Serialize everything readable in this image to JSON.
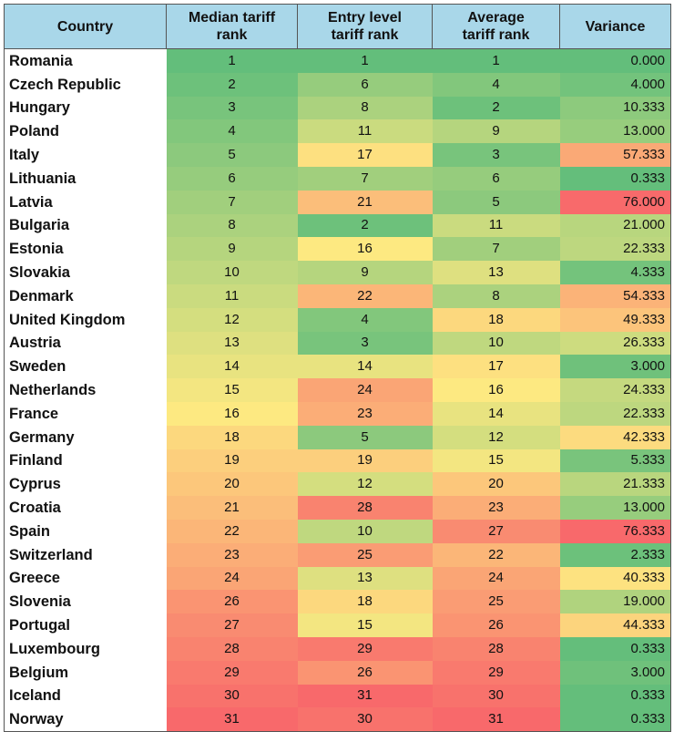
{
  "header_color": "#a9d7e9",
  "chart_data": {
    "type": "table",
    "columns": [
      "Country",
      "Median tariff rank",
      "Entry level tariff rank",
      "Average tariff rank",
      "Variance"
    ],
    "header_lines": [
      [
        "Country"
      ],
      [
        "Median tariff",
        "rank"
      ],
      [
        "Entry level",
        "tariff rank"
      ],
      [
        "Average",
        "tariff rank"
      ],
      [
        "Variance"
      ]
    ],
    "color_scale": {
      "low": "#63be7b",
      "mid": "#fde981",
      "high": "#f8696b"
    },
    "rows": [
      {
        "country": "Romania",
        "median": "1",
        "entry": "1",
        "average": "1",
        "variance": "0.000"
      },
      {
        "country": "Czech Republic",
        "median": "2",
        "entry": "6",
        "average": "4",
        "variance": "4.000"
      },
      {
        "country": "Hungary",
        "median": "3",
        "entry": "8",
        "average": "2",
        "variance": "10.333"
      },
      {
        "country": "Poland",
        "median": "4",
        "entry": "11",
        "average": "9",
        "variance": "13.000"
      },
      {
        "country": "Italy",
        "median": "5",
        "entry": "17",
        "average": "3",
        "variance": "57.333"
      },
      {
        "country": "Lithuania",
        "median": "6",
        "entry": "7",
        "average": "6",
        "variance": "0.333"
      },
      {
        "country": "Latvia",
        "median": "7",
        "entry": "21",
        "average": "5",
        "variance": "76.000"
      },
      {
        "country": "Bulgaria",
        "median": "8",
        "entry": "2",
        "average": "11",
        "variance": "21.000"
      },
      {
        "country": "Estonia",
        "median": "9",
        "entry": "16",
        "average": "7",
        "variance": "22.333"
      },
      {
        "country": "Slovakia",
        "median": "10",
        "entry": "9",
        "average": "13",
        "variance": "4.333"
      },
      {
        "country": "Denmark",
        "median": "11",
        "entry": "22",
        "average": "8",
        "variance": "54.333"
      },
      {
        "country": "United Kingdom",
        "median": "12",
        "entry": "4",
        "average": "18",
        "variance": "49.333"
      },
      {
        "country": "Austria",
        "median": "13",
        "entry": "3",
        "average": "10",
        "variance": "26.333"
      },
      {
        "country": "Sweden",
        "median": "14",
        "entry": "14",
        "average": "17",
        "variance": "3.000"
      },
      {
        "country": "Netherlands",
        "median": "15",
        "entry": "24",
        "average": "16",
        "variance": "24.333"
      },
      {
        "country": "France",
        "median": "16",
        "entry": "23",
        "average": "14",
        "variance": "22.333"
      },
      {
        "country": "Germany",
        "median": "18",
        "entry": "5",
        "average": "12",
        "variance": "42.333"
      },
      {
        "country": "Finland",
        "median": "19",
        "entry": "19",
        "average": "15",
        "variance": "5.333"
      },
      {
        "country": "Cyprus",
        "median": "20",
        "entry": "12",
        "average": "20",
        "variance": "21.333"
      },
      {
        "country": "Croatia",
        "median": "21",
        "entry": "28",
        "average": "23",
        "variance": "13.000"
      },
      {
        "country": "Spain",
        "median": "22",
        "entry": "10",
        "average": "27",
        "variance": "76.333"
      },
      {
        "country": "Switzerland",
        "median": "23",
        "entry": "25",
        "average": "22",
        "variance": "2.333"
      },
      {
        "country": "Greece",
        "median": "24",
        "entry": "13",
        "average": "24",
        "variance": "40.333"
      },
      {
        "country": "Slovenia",
        "median": "26",
        "entry": "18",
        "average": "25",
        "variance": "19.000"
      },
      {
        "country": "Portugal",
        "median": "27",
        "entry": "15",
        "average": "26",
        "variance": "44.333"
      },
      {
        "country": "Luxembourg",
        "median": "28",
        "entry": "29",
        "average": "28",
        "variance": "0.333"
      },
      {
        "country": "Belgium",
        "median": "29",
        "entry": "26",
        "average": "29",
        "variance": "3.000"
      },
      {
        "country": "Iceland",
        "median": "30",
        "entry": "31",
        "average": "30",
        "variance": "0.333"
      },
      {
        "country": "Norway",
        "median": "31",
        "entry": "30",
        "average": "31",
        "variance": "0.333"
      }
    ]
  }
}
